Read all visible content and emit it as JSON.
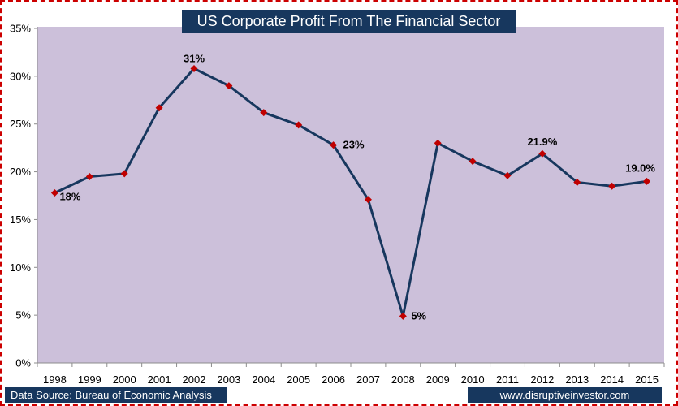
{
  "chart_data": {
    "type": "line",
    "title": "US Corporate Profit From The Financial Sector",
    "categories": [
      "1998",
      "1999",
      "2000",
      "2001",
      "2002",
      "2003",
      "2004",
      "2005",
      "2006",
      "2007",
      "2008",
      "2009",
      "2010",
      "2011",
      "2012",
      "2013",
      "2014",
      "2015"
    ],
    "series": [
      {
        "values": [
          17.8,
          19.5,
          19.8,
          26.7,
          30.8,
          29.0,
          26.2,
          24.9,
          22.8,
          17.1,
          4.9,
          23.0,
          21.1,
          19.6,
          21.9,
          18.9,
          18.5,
          19.0
        ]
      }
    ],
    "data_labels": [
      {
        "index": 0,
        "text": "18%"
      },
      {
        "index": 4,
        "text": "31%"
      },
      {
        "index": 8,
        "text": "23%"
      },
      {
        "index": 10,
        "text": "5%"
      },
      {
        "index": 14,
        "text": "21.9%"
      },
      {
        "index": 17,
        "text": "19.0%"
      }
    ],
    "y_ticks": [
      "0%",
      "5%",
      "10%",
      "15%",
      "20%",
      "25%",
      "30%",
      "35%"
    ],
    "ylim": [
      0,
      35
    ],
    "xlabel": "",
    "ylabel": "",
    "grid": false,
    "colors": {
      "plot_background": "#ccc0da",
      "line": "#17375e",
      "marker": "#c00000",
      "title_background": "#17375e",
      "border": "#cc0000"
    }
  },
  "footer": {
    "source": "Data Source: Bureau of Economic Analysis",
    "website": "www.disruptiveinvestor.com"
  }
}
